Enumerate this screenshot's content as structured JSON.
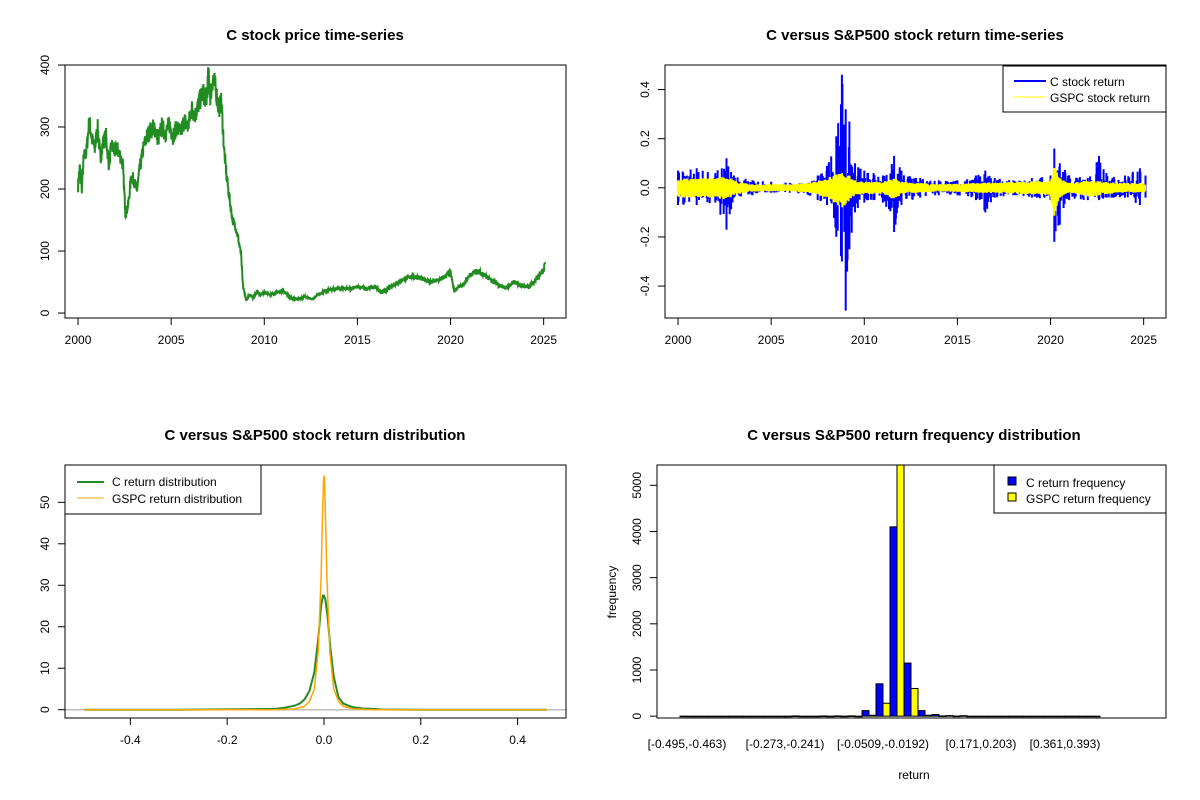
{
  "chart_data": [
    {
      "id": "price",
      "type": "line",
      "title": "C stock price time-series",
      "xlabel": "",
      "ylabel": "",
      "xlim": [
        1999.3,
        2026.2
      ],
      "ylim": [
        -8,
        400
      ],
      "xticks": [
        "2000",
        "2005",
        "2010",
        "2015",
        "2020",
        "2025"
      ],
      "xtick_values": [
        2000,
        2005,
        2010,
        2015,
        2020,
        2025
      ],
      "yticks": [
        "0",
        "100",
        "200",
        "300",
        "400"
      ],
      "ytick_values": [
        0,
        100,
        200,
        300,
        400
      ],
      "colors": {
        "line": "#228B22"
      },
      "series": [
        {
          "name": "C stock price",
          "x": [
            2000.0,
            2000.1,
            2000.2,
            2000.3,
            2000.45,
            2000.6,
            2000.75,
            2000.9,
            2001.05,
            2001.2,
            2001.35,
            2001.5,
            2001.65,
            2001.8,
            2001.95,
            2002.1,
            2002.25,
            2002.4,
            2002.55,
            2002.7,
            2002.85,
            2003.0,
            2003.15,
            2003.3,
            2003.5,
            2003.7,
            2003.9,
            2004.1,
            2004.3,
            2004.5,
            2004.7,
            2004.9,
            2005.1,
            2005.3,
            2005.5,
            2005.7,
            2005.9,
            2006.1,
            2006.3,
            2006.5,
            2006.7,
            2006.9,
            2007.0,
            2007.1,
            2007.25,
            2007.4,
            2007.55,
            2007.7,
            2007.85,
            2008.0,
            2008.15,
            2008.3,
            2008.45,
            2008.6,
            2008.75,
            2008.85,
            2008.95,
            2009.05,
            2009.2,
            2009.4,
            2009.6,
            2009.8,
            2010.0,
            2010.3,
            2010.6,
            2011.0,
            2011.4,
            2011.8,
            2012.2,
            2012.6,
            2013.0,
            2013.5,
            2014.0,
            2014.5,
            2015.0,
            2015.5,
            2016.0,
            2016.3,
            2016.6,
            2017.0,
            2017.5,
            2018.0,
            2018.5,
            2019.0,
            2019.5,
            2020.0,
            2020.2,
            2020.4,
            2020.7,
            2021.0,
            2021.4,
            2021.8,
            2022.2,
            2022.6,
            2023.0,
            2023.4,
            2023.8,
            2024.2,
            2024.6,
            2025.0,
            2025.1
          ],
          "y": [
            205,
            235,
            200,
            250,
            260,
            310,
            280,
            265,
            300,
            250,
            275,
            285,
            240,
            270,
            260,
            265,
            255,
            240,
            160,
            175,
            220,
            215,
            195,
            230,
            265,
            285,
            295,
            300,
            280,
            300,
            290,
            305,
            285,
            300,
            290,
            310,
            300,
            330,
            320,
            340,
            355,
            345,
            385,
            350,
            380,
            360,
            330,
            340,
            260,
            215,
            180,
            150,
            140,
            120,
            95,
            45,
            30,
            20,
            30,
            25,
            35,
            30,
            33,
            30,
            32,
            37,
            25,
            22,
            27,
            22,
            32,
            38,
            40,
            39,
            42,
            40,
            42,
            32,
            38,
            47,
            55,
            60,
            55,
            50,
            55,
            65,
            35,
            42,
            45,
            60,
            68,
            62,
            52,
            45,
            40,
            50,
            45,
            42,
            55,
            68,
            85
          ]
        }
      ]
    },
    {
      "id": "returns",
      "type": "line",
      "title": "C versus S&P500 stock return time-series",
      "xlabel": "",
      "ylabel": "",
      "xlim": [
        1999.3,
        2026.2
      ],
      "ylim": [
        -0.53,
        0.5
      ],
      "xticks": [
        "2000",
        "2005",
        "2010",
        "2015",
        "2020",
        "2025"
      ],
      "xtick_values": [
        2000,
        2005,
        2010,
        2015,
        2020,
        2025
      ],
      "yticks": [
        "-0.4",
        "-0.2",
        "0.0",
        "0.2",
        "0.4"
      ],
      "ytick_values": [
        -0.4,
        -0.2,
        0.0,
        0.2,
        0.4
      ],
      "legend": {
        "position": "top-right",
        "entries": [
          "C stock return",
          "GSPC stock return"
        ]
      },
      "colors": {
        "c": "#0000FF",
        "gspc": "#FFFF00"
      },
      "series": [
        {
          "name": "C stock return",
          "envelope_x": [
            2000,
            2001,
            2002,
            2002.6,
            2003,
            2004,
            2005,
            2006,
            2007,
            2007.5,
            2008,
            2008.5,
            2008.8,
            2009.0,
            2009.2,
            2009.5,
            2010,
            2010.5,
            2011,
            2011.6,
            2012,
            2013,
            2014,
            2015,
            2016,
            2016.5,
            2017,
            2018,
            2019,
            2020.0,
            2020.2,
            2020.5,
            2021,
            2022,
            2022.6,
            2023,
            2024,
            2024.8,
            2025.1
          ],
          "envelope_hi": [
            0.07,
            0.08,
            0.06,
            0.12,
            0.05,
            0.03,
            0.025,
            0.02,
            0.02,
            0.05,
            0.09,
            0.21,
            0.46,
            0.32,
            0.27,
            0.1,
            0.07,
            0.06,
            0.05,
            0.13,
            0.07,
            0.04,
            0.03,
            0.03,
            0.05,
            0.07,
            0.04,
            0.03,
            0.04,
            0.05,
            0.16,
            0.1,
            0.05,
            0.04,
            0.13,
            0.06,
            0.05,
            0.08,
            0.05
          ],
          "envelope_lo": [
            -0.07,
            -0.07,
            -0.06,
            -0.17,
            -0.04,
            -0.03,
            -0.02,
            -0.02,
            -0.03,
            -0.05,
            -0.07,
            -0.2,
            -0.3,
            -0.5,
            -0.25,
            -0.1,
            -0.06,
            -0.05,
            -0.06,
            -0.18,
            -0.07,
            -0.04,
            -0.03,
            -0.03,
            -0.05,
            -0.1,
            -0.04,
            -0.03,
            -0.04,
            -0.05,
            -0.22,
            -0.15,
            -0.05,
            -0.05,
            -0.05,
            -0.04,
            -0.04,
            -0.07,
            -0.04
          ]
        },
        {
          "name": "GSPC stock return",
          "envelope_x": [
            2000,
            2001,
            2002,
            2002.6,
            2003,
            2004,
            2005,
            2006,
            2007,
            2008,
            2008.8,
            2009.2,
            2009.6,
            2010,
            2011,
            2011.6,
            2012,
            2014,
            2016,
            2018,
            2020.0,
            2020.2,
            2020.5,
            2021,
            2022,
            2023,
            2024,
            2025.1
          ],
          "envelope_hi": [
            0.04,
            0.04,
            0.04,
            0.05,
            0.03,
            0.015,
            0.015,
            0.015,
            0.02,
            0.04,
            0.07,
            0.05,
            0.03,
            0.025,
            0.025,
            0.04,
            0.025,
            0.015,
            0.02,
            0.025,
            0.03,
            0.09,
            0.04,
            0.02,
            0.03,
            0.025,
            0.02,
            0.02
          ],
          "envelope_lo": [
            -0.04,
            -0.04,
            -0.04,
            -0.05,
            -0.03,
            -0.015,
            -0.015,
            -0.015,
            -0.02,
            -0.04,
            -0.09,
            -0.05,
            -0.03,
            -0.025,
            -0.025,
            -0.05,
            -0.025,
            -0.015,
            -0.02,
            -0.025,
            -0.03,
            -0.12,
            -0.04,
            -0.02,
            -0.04,
            -0.025,
            -0.02,
            -0.02
          ]
        }
      ]
    },
    {
      "id": "density",
      "type": "line",
      "title": "C versus S&P500 stock return distribution",
      "xlabel": "",
      "ylabel": "",
      "xlim": [
        -0.535,
        0.5
      ],
      "ylim": [
        -2,
        59
      ],
      "xticks": [
        "-0.4",
        "-0.2",
        "0.0",
        "0.2",
        "0.4"
      ],
      "xtick_values": [
        -0.4,
        -0.2,
        0.0,
        0.2,
        0.4
      ],
      "yticks": [
        "0",
        "10",
        "20",
        "30",
        "40",
        "50"
      ],
      "ytick_values": [
        0,
        10,
        20,
        30,
        40,
        50
      ],
      "legend": {
        "position": "top-left",
        "entries": [
          "C return distribution",
          "GSPC return distribution"
        ]
      },
      "colors": {
        "c": "#228B22",
        "gspc": "#FFA500",
        "baseline": "#BEBEBE"
      },
      "series": [
        {
          "name": "C return distribution",
          "x": [
            -0.495,
            -0.3,
            -0.17,
            -0.1,
            -0.08,
            -0.06,
            -0.05,
            -0.04,
            -0.03,
            -0.02,
            -0.012,
            -0.006,
            -0.002,
            0.0,
            0.003,
            0.008,
            0.013,
            0.02,
            0.03,
            0.04,
            0.05,
            0.06,
            0.08,
            0.1,
            0.12,
            0.2,
            0.46
          ],
          "y": [
            0,
            0,
            0.1,
            0.2,
            0.5,
            1.0,
            1.5,
            2.5,
            4.5,
            9,
            17,
            25,
            27.5,
            27.5,
            26.5,
            22,
            15,
            8,
            3,
            1.5,
            1,
            0.6,
            0.3,
            0.2,
            0.05,
            0,
            0
          ]
        },
        {
          "name": "GSPC return distribution",
          "x": [
            -0.495,
            -0.1,
            -0.06,
            -0.04,
            -0.03,
            -0.02,
            -0.012,
            -0.006,
            -0.003,
            -0.001,
            0.0,
            0.001,
            0.003,
            0.006,
            0.012,
            0.02,
            0.03,
            0.04,
            0.06,
            0.1,
            0.46
          ],
          "y": [
            0,
            0,
            0.2,
            0.8,
            2,
            5,
            14,
            32,
            47,
            55,
            56.5,
            55,
            47,
            32,
            14,
            5,
            2,
            0.8,
            0.2,
            0,
            0
          ]
        }
      ]
    },
    {
      "id": "histogram",
      "type": "bar",
      "title": "C versus S&P500 return frequency distribution",
      "xlabel": "return",
      "ylabel": "frequency",
      "ylim": [
        -40,
        5440
      ],
      "yticks": [
        "0",
        "1000",
        "2000",
        "3000",
        "4000",
        "5000"
      ],
      "ytick_values": [
        0,
        1000,
        2000,
        3000,
        4000,
        5000
      ],
      "xtick_labels_shown": [
        "[-0.495,-0.463)",
        "[-0.273,-0.241)",
        "[-0.0509,-0.0192)",
        "[0.171,0.203)",
        "[0.361,0.393)"
      ],
      "xtick_label_bins": [
        0,
        7,
        14,
        21,
        27
      ],
      "legend": {
        "position": "top-right",
        "entries": [
          "C return frequency",
          "GSPC return frequency"
        ]
      },
      "colors": {
        "c": "#0000FF",
        "gspc": "#FFFF00"
      },
      "bin_count": 30,
      "series": [
        {
          "name": "C return frequency",
          "values": [
            1,
            0,
            0,
            0,
            0,
            0,
            0,
            0,
            5,
            0,
            4,
            5,
            6,
            120,
            700,
            4100,
            1150,
            120,
            35,
            12,
            10,
            0,
            0,
            0,
            0,
            0,
            0,
            0,
            0,
            0
          ]
        },
        {
          "name": "GSPC return frequency",
          "values": [
            0,
            0,
            0,
            0,
            0,
            0,
            0,
            0,
            0,
            0,
            0,
            0,
            0,
            20,
            280,
            5440,
            600,
            20,
            5,
            2,
            0,
            0,
            0,
            0,
            0,
            0,
            0,
            0,
            0,
            0
          ]
        }
      ]
    }
  ]
}
